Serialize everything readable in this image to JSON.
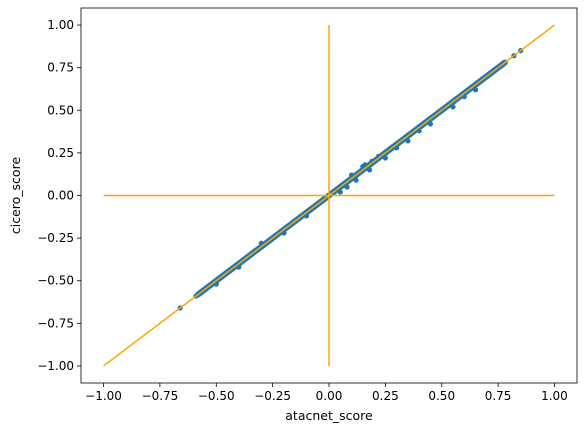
{
  "chart_data": {
    "type": "scatter",
    "title": "",
    "xlabel": "atacnet_score",
    "ylabel": "cicero_score",
    "xlim": [
      -1.1,
      1.1
    ],
    "ylim": [
      -1.1,
      1.1
    ],
    "xticks": [
      -1.0,
      -0.75,
      -0.5,
      -0.25,
      0.0,
      0.25,
      0.5,
      0.75,
      1.0
    ],
    "yticks": [
      -1.0,
      -0.75,
      -0.5,
      -0.25,
      0.0,
      0.25,
      0.5,
      0.75,
      1.0
    ],
    "xtick_labels": [
      "−1.00",
      "−0.75",
      "−0.50",
      "−0.25",
      "0.00",
      "0.25",
      "0.50",
      "0.75",
      "1.00"
    ],
    "ytick_labels": [
      "−1.00",
      "−0.75",
      "−0.50",
      "−0.25",
      "0.00",
      "0.25",
      "0.50",
      "0.75",
      "1.00"
    ],
    "grid": false,
    "points": [
      [
        -0.66,
        -0.66
      ],
      [
        -0.59,
        -0.59
      ],
      [
        -0.58,
        -0.58
      ],
      [
        -0.57,
        -0.57
      ],
      [
        -0.55,
        -0.55
      ],
      [
        -0.53,
        -0.53
      ],
      [
        -0.5,
        -0.5
      ],
      [
        -0.48,
        -0.48
      ],
      [
        -0.45,
        -0.45
      ],
      [
        -0.42,
        -0.42
      ],
      [
        -0.4,
        -0.4
      ],
      [
        -0.37,
        -0.37
      ],
      [
        -0.35,
        -0.35
      ],
      [
        -0.32,
        -0.32
      ],
      [
        -0.3,
        -0.3
      ],
      [
        -0.28,
        -0.28
      ],
      [
        -0.25,
        -0.25
      ],
      [
        -0.22,
        -0.22
      ],
      [
        -0.2,
        -0.2
      ],
      [
        -0.17,
        -0.17
      ],
      [
        -0.15,
        -0.15
      ],
      [
        -0.12,
        -0.12
      ],
      [
        -0.1,
        -0.1
      ],
      [
        -0.08,
        -0.08
      ],
      [
        -0.05,
        -0.05
      ],
      [
        -0.03,
        -0.03
      ],
      [
        0.0,
        0.0
      ],
      [
        0.02,
        0.02
      ],
      [
        0.05,
        0.05
      ],
      [
        0.07,
        0.07
      ],
      [
        0.1,
        0.1
      ],
      [
        0.12,
        0.12
      ],
      [
        0.15,
        0.15
      ],
      [
        0.17,
        0.17
      ],
      [
        0.2,
        0.2
      ],
      [
        0.22,
        0.22
      ],
      [
        0.25,
        0.25
      ],
      [
        0.27,
        0.27
      ],
      [
        0.3,
        0.3
      ],
      [
        0.32,
        0.32
      ],
      [
        0.35,
        0.35
      ],
      [
        0.37,
        0.37
      ],
      [
        0.4,
        0.4
      ],
      [
        0.42,
        0.42
      ],
      [
        0.45,
        0.45
      ],
      [
        0.47,
        0.47
      ],
      [
        0.5,
        0.5
      ],
      [
        0.52,
        0.52
      ],
      [
        0.55,
        0.55
      ],
      [
        0.57,
        0.57
      ],
      [
        0.6,
        0.6
      ],
      [
        0.62,
        0.62
      ],
      [
        0.65,
        0.65
      ],
      [
        0.67,
        0.67
      ],
      [
        0.7,
        0.7
      ],
      [
        0.72,
        0.72
      ],
      [
        0.75,
        0.75
      ],
      [
        0.77,
        0.77
      ],
      [
        0.78,
        0.78
      ],
      [
        0.82,
        0.82
      ],
      [
        0.85,
        0.85
      ],
      [
        0.16,
        0.18
      ],
      [
        0.19,
        0.2
      ],
      [
        0.22,
        0.23
      ],
      [
        0.15,
        0.17
      ],
      [
        0.1,
        0.12
      ],
      [
        -0.5,
        -0.52
      ],
      [
        0.3,
        0.28
      ],
      [
        0.4,
        0.38
      ],
      [
        0.6,
        0.58
      ],
      [
        -0.3,
        -0.28
      ],
      [
        0.05,
        0.02
      ],
      [
        0.08,
        0.05
      ],
      [
        0.12,
        0.09
      ],
      [
        0.18,
        0.15
      ],
      [
        0.25,
        0.22
      ],
      [
        0.35,
        0.32
      ],
      [
        0.45,
        0.42
      ],
      [
        0.55,
        0.52
      ],
      [
        0.65,
        0.62
      ],
      [
        -0.2,
        -0.22
      ],
      [
        -0.4,
        -0.42
      ],
      [
        -0.1,
        -0.12
      ]
    ],
    "reference_lines": [
      {
        "name": "diagonal",
        "x": [
          -1.0,
          1.0
        ],
        "y": [
          -1.0,
          1.0
        ]
      },
      {
        "name": "horizontal",
        "x": [
          -1.0,
          1.0
        ],
        "y": [
          0.0,
          0.0
        ]
      },
      {
        "name": "vertical",
        "x": [
          0.0,
          0.0
        ],
        "y": [
          -1.0,
          1.0
        ]
      }
    ],
    "colors": {
      "points": "#1f77b4",
      "reference_lines": "#ffa500",
      "axes": "#000000"
    }
  }
}
